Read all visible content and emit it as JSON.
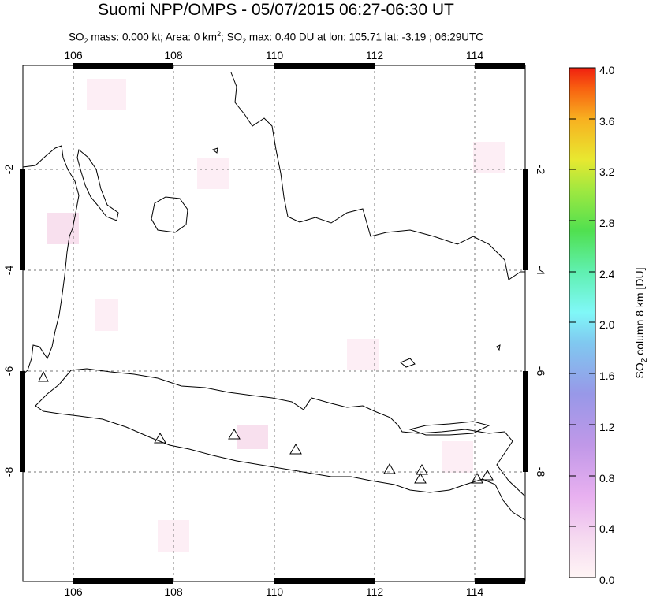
{
  "title": "Suomi NPP/OMPS - 05/07/2015 06:27-06:30 UT",
  "subtitle": {
    "pre": "SO",
    "sub": "2",
    "mid": " mass: 0.000 kt; Area: 0 km",
    "sup": "2",
    "mid2": "; SO",
    "sub2": "2",
    "post": " max: 0.40 DU at lon: 105.71 lat: -3.19 ; 06:29UTC"
  },
  "map": {
    "lon_ticks": [
      "106",
      "108",
      "110",
      "112",
      "114"
    ],
    "lat_ticks": [
      "-2",
      "-4",
      "-6",
      "-8"
    ],
    "lon_range": [
      105.0,
      115.0
    ],
    "lat_range": [
      -10.0,
      0.0
    ],
    "volcano_marker": "triangle-icon",
    "volcanoes_lonlat": [
      [
        105.42,
        -6.1
      ],
      [
        107.73,
        -7.32
      ],
      [
        109.22,
        -7.24
      ],
      [
        110.44,
        -7.54
      ],
      [
        112.31,
        -7.93
      ],
      [
        112.95,
        -7.94
      ],
      [
        112.92,
        -8.11
      ],
      [
        114.04,
        -8.06
      ],
      [
        114.24,
        -8.01
      ]
    ]
  },
  "colorbar": {
    "ticks": [
      "4.0",
      "3.6",
      "3.2",
      "2.8",
      "2.4",
      "2.0",
      "1.6",
      "1.2",
      "0.8",
      "0.4",
      "0.0"
    ],
    "label_pre": "SO",
    "label_sub": "2",
    "label_post": " column 8 km [DU]",
    "range": [
      0.0,
      4.0
    ],
    "colors": [
      "#fff5f5",
      "#f5c8f0",
      "#d9a0f0",
      "#9898e8",
      "#80c8f0",
      "#80f8f8",
      "#60f0b0",
      "#50e050",
      "#a0e840",
      "#e8e830",
      "#f8b020",
      "#f86010",
      "#f02010"
    ]
  }
}
